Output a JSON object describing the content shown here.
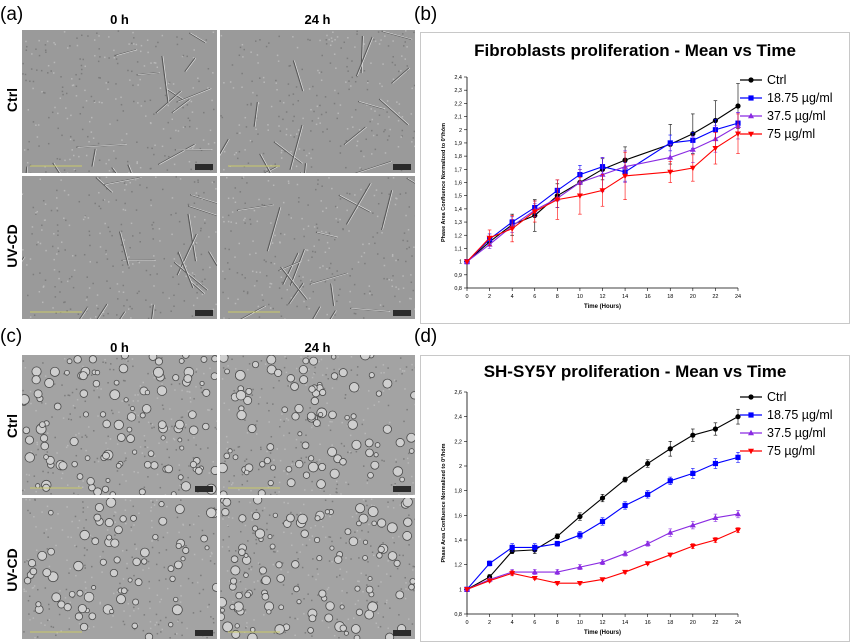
{
  "panels": {
    "a": {
      "letter": "(a)",
      "time_labels": [
        "0 h",
        "24 h"
      ],
      "row_labels": [
        "Ctrl",
        "UV-CD"
      ]
    },
    "b": {
      "letter": "(b)"
    },
    "c": {
      "letter": "(c)",
      "time_labels": [
        "0 h",
        "24 h"
      ],
      "row_labels": [
        "Ctrl",
        "UV-CD"
      ]
    },
    "d": {
      "letter": "(d)"
    }
  },
  "chart_data": [
    {
      "type": "line",
      "title": "Fibroblasts proliferation - Mean vs Time",
      "xlabel": "Time (Hours)",
      "ylabel": "Phase Area Confluence Normalized to 0°/hóm",
      "x": [
        0,
        2,
        4,
        6,
        8,
        10,
        12,
        14,
        18,
        20,
        22,
        24
      ],
      "xticks": [
        "0",
        "2",
        "4",
        "6",
        "8",
        "10",
        "12",
        "14",
        "16",
        "18",
        "20",
        "22",
        "24"
      ],
      "ylim": [
        0.8,
        2.4
      ],
      "yticks": [
        "0,8",
        "0,9",
        "1",
        "1,1",
        "1,2",
        "1,3",
        "1,4",
        "1,5",
        "1,6",
        "1,7",
        "1,8",
        "1,9",
        "2",
        "2,1",
        "2,2",
        "2,3",
        "2,4"
      ],
      "series": [
        {
          "name": "Ctrl",
          "color": "#000000",
          "marker": "circle",
          "values": [
            1.0,
            1.15,
            1.28,
            1.35,
            1.5,
            1.6,
            1.7,
            1.77,
            1.89,
            1.97,
            2.07,
            2.18
          ],
          "errors": [
            0,
            0.03,
            0.08,
            0.12,
            0.09,
            0.1,
            0.08,
            0.1,
            0.15,
            0.15,
            0.15,
            0.17
          ]
        },
        {
          "name": "18.75 µg/ml",
          "color": "#0000ff",
          "marker": "square",
          "values": [
            1.0,
            1.17,
            1.3,
            1.41,
            1.54,
            1.66,
            1.72,
            1.68,
            1.9,
            1.92,
            2.0,
            2.05
          ],
          "errors": [
            0,
            0.04,
            0.04,
            0.05,
            0.08,
            0.07,
            0.07,
            0.07,
            0.06,
            0.06,
            0.08,
            0.08
          ]
        },
        {
          "name": "37.5 µg/ml",
          "color": "#8a2be2",
          "marker": "triangle",
          "values": [
            1.0,
            1.13,
            1.27,
            1.39,
            1.48,
            1.6,
            1.66,
            1.72,
            1.79,
            1.85,
            1.93,
            2.03
          ],
          "errors": [
            0,
            0.03,
            0.05,
            0.05,
            0.07,
            0.1,
            0.13,
            0.12,
            0.1,
            0.1,
            0.1,
            0.1
          ]
        },
        {
          "name": "75 µg/ml",
          "color": "#ff0000",
          "marker": "triangle-down",
          "values": [
            1.0,
            1.18,
            1.25,
            1.38,
            1.47,
            1.5,
            1.54,
            1.65,
            1.68,
            1.71,
            1.86,
            1.97
          ],
          "errors": [
            0,
            0.06,
            0.1,
            0.08,
            0.15,
            0.14,
            0.12,
            0.18,
            0.08,
            0.1,
            0.12,
            0.15
          ]
        }
      ]
    },
    {
      "type": "line",
      "title": "SH-SY5Y proliferation - Mean vs Time",
      "xlabel": "Time (Hours)",
      "ylabel": "Phase Area Confluence Normalized to 0°/hóm",
      "x": [
        0,
        2,
        4,
        6,
        8,
        10,
        12,
        14,
        16,
        18,
        20,
        22,
        24
      ],
      "xticks": [
        "0",
        "2",
        "4",
        "6",
        "8",
        "10",
        "12",
        "14",
        "16",
        "18",
        "20",
        "22",
        "24"
      ],
      "ylim": [
        0.8,
        2.6
      ],
      "yticks": [
        "0,8",
        "1",
        "1,2",
        "1,4",
        "1,6",
        "1,8",
        "2",
        "2,2",
        "2,4",
        "2,6"
      ],
      "series": [
        {
          "name": "Ctrl",
          "color": "#000000",
          "marker": "circle",
          "values": [
            1.0,
            1.1,
            1.31,
            1.32,
            1.43,
            1.59,
            1.74,
            1.89,
            2.02,
            2.14,
            2.25,
            2.3,
            2.4
          ],
          "errors": [
            0,
            0.02,
            0.02,
            0.03,
            0.02,
            0.03,
            0.03,
            0.02,
            0.03,
            0.06,
            0.05,
            0.05,
            0.06
          ]
        },
        {
          "name": "18.75 µg/ml",
          "color": "#0000ff",
          "marker": "square",
          "values": [
            1.0,
            1.21,
            1.34,
            1.34,
            1.37,
            1.44,
            1.55,
            1.68,
            1.77,
            1.88,
            1.94,
            2.02,
            2.07
          ],
          "errors": [
            0,
            0.02,
            0.03,
            0.03,
            0.02,
            0.03,
            0.03,
            0.03,
            0.03,
            0.03,
            0.04,
            0.04,
            0.04
          ]
        },
        {
          "name": "37.5 µg/ml",
          "color": "#8a2be2",
          "marker": "triangle",
          "values": [
            1.0,
            1.08,
            1.14,
            1.14,
            1.14,
            1.18,
            1.22,
            1.29,
            1.37,
            1.46,
            1.52,
            1.58,
            1.61
          ],
          "errors": [
            0,
            0.01,
            0.02,
            0.02,
            0.02,
            0.02,
            0.02,
            0.02,
            0.02,
            0.03,
            0.03,
            0.03,
            0.03
          ]
        },
        {
          "name": "75 µg/ml",
          "color": "#ff0000",
          "marker": "triangle-down",
          "values": [
            1.0,
            1.07,
            1.13,
            1.09,
            1.05,
            1.05,
            1.08,
            1.14,
            1.21,
            1.28,
            1.35,
            1.4,
            1.48
          ],
          "errors": [
            0,
            0.01,
            0.02,
            0.01,
            0.01,
            0.01,
            0.01,
            0.01,
            0.01,
            0.01,
            0.02,
            0.02,
            0.02
          ]
        }
      ]
    }
  ]
}
